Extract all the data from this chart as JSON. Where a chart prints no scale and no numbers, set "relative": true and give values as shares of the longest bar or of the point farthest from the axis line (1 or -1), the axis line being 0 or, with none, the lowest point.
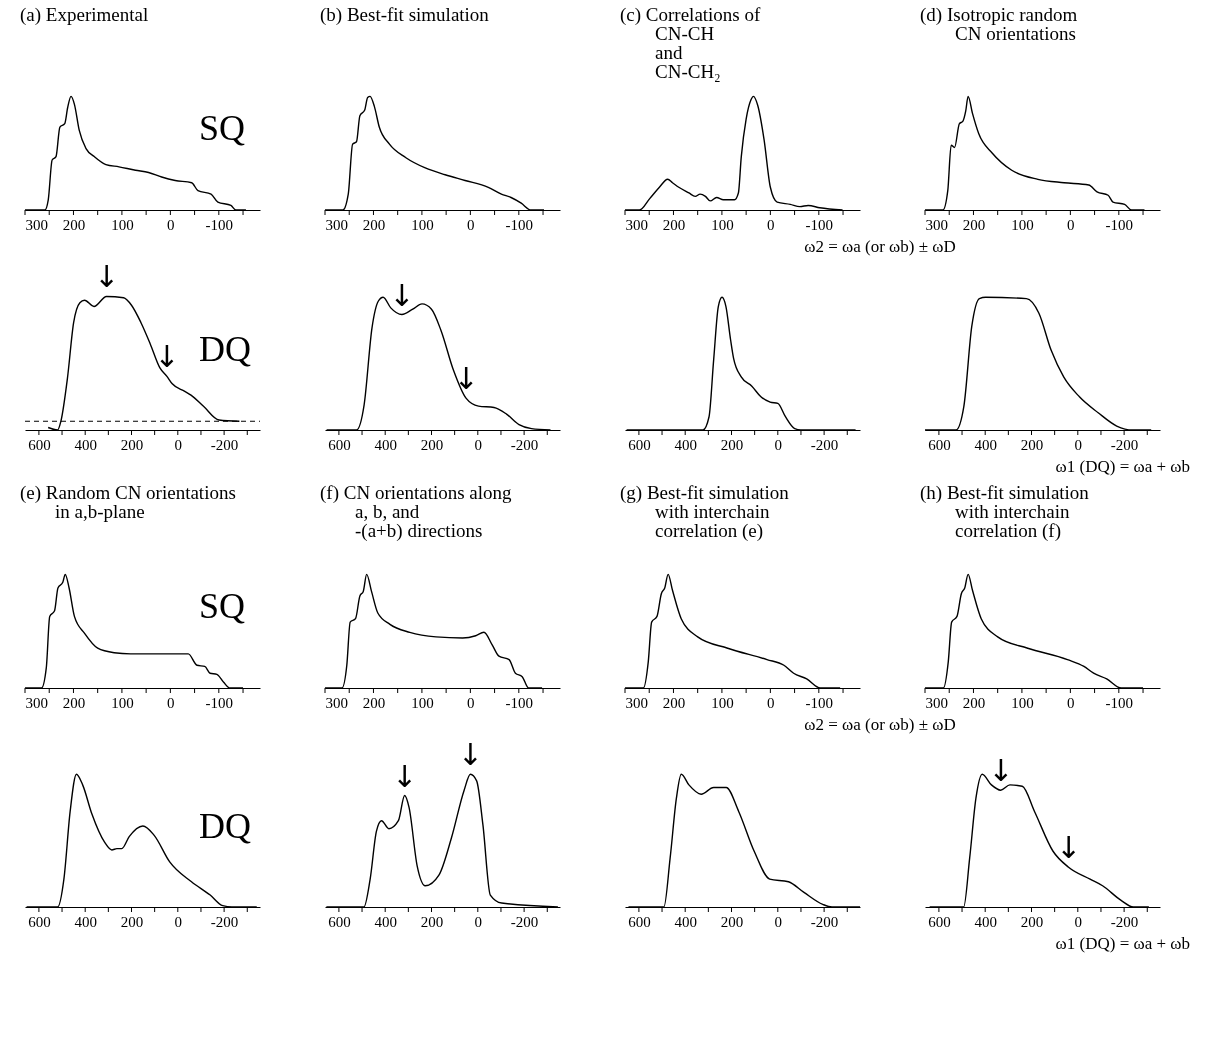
{
  "chart_data": [
    {
      "type": "line",
      "relative": true,
      "title": "(a) Experimental",
      "annotations": [
        "SQ"
      ],
      "xlim": [
        300,
        -185
      ],
      "xticks": [
        300,
        {
          "value": 250,
          "label": null
        },
        200,
        {
          "value": 150,
          "label": null
        },
        100,
        {
          "value": 50,
          "label": null
        },
        0,
        {
          "value": -50,
          "label": null
        },
        -100,
        {
          "value": -150,
          "label": null
        }
      ],
      "x": [
        300,
        259,
        252,
        244,
        236,
        228,
        218,
        212,
        205,
        198,
        188,
        174,
        157,
        133,
        106,
        72,
        45,
        18,
        -10,
        -44,
        -57,
        -84,
        -98,
        -125,
        -135,
        -156
      ],
      "values": [
        0,
        0,
        0.09,
        0.44,
        0.47,
        0.73,
        0.76,
        0.9,
        1.0,
        0.93,
        0.7,
        0.54,
        0.47,
        0.4,
        0.38,
        0.35,
        0.33,
        0.29,
        0.26,
        0.24,
        0.17,
        0.14,
        0.07,
        0.04,
        0,
        0
      ]
    },
    {
      "type": "line",
      "relative": true,
      "title": "(b) Best-fit simulation",
      "xlim": [
        300,
        -185
      ],
      "xticks": [
        300,
        {
          "value": 250,
          "label": null
        },
        200,
        {
          "value": 150,
          "label": null
        },
        100,
        {
          "value": 50,
          "label": null
        },
        0,
        {
          "value": -50,
          "label": null
        },
        -100,
        {
          "value": -150,
          "label": null
        }
      ],
      "x": [
        300,
        263,
        252,
        243,
        235,
        228,
        218,
        212,
        207,
        198,
        188,
        167,
        133,
        93,
        52,
        11,
        -37,
        -64,
        -84,
        -105,
        -125,
        -152
      ],
      "values": [
        0,
        0,
        0.14,
        0.58,
        0.6,
        0.83,
        0.88,
        0.99,
        1.0,
        0.91,
        0.73,
        0.58,
        0.46,
        0.37,
        0.31,
        0.26,
        0.2,
        0.14,
        0.11,
        0.06,
        0,
        0
      ]
    },
    {
      "type": "line",
      "relative": true,
      "title": "(c) Correlations of\nCN-CH\nand\nCN-CH₂",
      "xlabel": "ω2 = ωa (or ωb) ± ωD",
      "xlim": [
        300,
        -185
      ],
      "xticks": [
        300,
        {
          "value": 250,
          "label": null
        },
        200,
        {
          "value": 150,
          "label": null
        },
        100,
        {
          "value": 50,
          "label": null
        },
        0,
        {
          "value": -50,
          "label": null
        },
        -100,
        {
          "value": -150,
          "label": null
        }
      ],
      "x": [
        300,
        270,
        249,
        229,
        212,
        202,
        189,
        168,
        155,
        145,
        134,
        124,
        111,
        97,
        74,
        66,
        60,
        50,
        40,
        35,
        26,
        13,
        0,
        -14,
        -41,
        -61,
        -78,
        -102,
        -149
      ],
      "values": [
        0,
        0,
        0.1,
        0.2,
        0.27,
        0.24,
        0.2,
        0.15,
        0.12,
        0.14,
        0.12,
        0.08,
        0.11,
        0.09,
        0.09,
        0.15,
        0.47,
        0.8,
        0.97,
        1.0,
        0.92,
        0.62,
        0.2,
        0.07,
        0.05,
        0.03,
        0.04,
        0.02,
        0
      ]
    },
    {
      "type": "line",
      "relative": true,
      "title": "(d) Isotropic random\nCN orientations",
      "xlim": [
        300,
        -185
      ],
      "xticks": [
        300,
        {
          "value": 250,
          "label": null
        },
        200,
        {
          "value": 150,
          "label": null
        },
        100,
        {
          "value": 50,
          "label": null
        },
        0,
        {
          "value": -50,
          "label": null
        },
        -100,
        {
          "value": -150,
          "label": null
        }
      ],
      "x": [
        300,
        263,
        253,
        246,
        239,
        229,
        222,
        216,
        211,
        202,
        189,
        161,
        121,
        67,
        13,
        -38,
        -55,
        -78,
        -88,
        -112,
        -126,
        -153
      ],
      "values": [
        0,
        0,
        0.17,
        0.57,
        0.55,
        0.76,
        0.78,
        0.87,
        1.0,
        0.85,
        0.67,
        0.5,
        0.35,
        0.27,
        0.24,
        0.22,
        0.16,
        0.13,
        0.07,
        0.05,
        0,
        0
      ]
    },
    {
      "type": "line",
      "relative": true,
      "annotations": [
        "DQ",
        {
          "text": "↓",
          "x": 308,
          "y": 1.0
        },
        {
          "text": "↓",
          "x": 47,
          "y": 0.36
        }
      ],
      "ref_lines": [
        {
          "axis": "y",
          "value": 0,
          "line_style": "dashed"
        }
      ],
      "xlim": [
        660,
        -355
      ],
      "xticks": [
        600,
        {
          "value": 500,
          "label": null
        },
        400,
        {
          "value": 300,
          "label": null
        },
        200,
        {
          "value": 100,
          "label": null
        },
        0,
        {
          "value": -100,
          "label": null
        },
        -200,
        {
          "value": -300,
          "label": null
        }
      ],
      "x": [
        560,
        519,
        505,
        477,
        450,
        423,
        403,
        362,
        308,
        234,
        200,
        159,
        119,
        78,
        47,
        24,
        -30,
        -57,
        -111,
        -178,
        -266
      ],
      "values": [
        -0.05,
        -0.07,
        0,
        0.34,
        0.79,
        0.95,
        0.97,
        0.92,
        1.0,
        0.99,
        0.93,
        0.79,
        0.62,
        0.43,
        0.36,
        0.3,
        0.24,
        0.21,
        0.12,
        0.01,
        0
      ]
    },
    {
      "type": "line",
      "relative": true,
      "annotations": [
        {
          "text": "↓",
          "x": 328,
          "y": 0.87
        },
        {
          "text": "↓",
          "x": 51,
          "y": 0.24
        }
      ],
      "xlim": [
        660,
        -355
      ],
      "xticks": [
        600,
        {
          "value": 500,
          "label": null
        },
        400,
        {
          "value": 300,
          "label": null
        },
        200,
        {
          "value": 100,
          "label": null
        },
        0,
        {
          "value": -100,
          "label": null
        },
        -200,
        {
          "value": -300,
          "label": null
        }
      ],
      "x": [
        653,
        524,
        491,
        457,
        430,
        409,
        376,
        328,
        281,
        241,
        200,
        159,
        105,
        51,
        -3,
        -70,
        -124,
        -178,
        -232,
        -314
      ],
      "values": [
        0,
        0,
        0.19,
        0.77,
        0.97,
        1.0,
        0.92,
        0.87,
        0.91,
        0.95,
        0.91,
        0.75,
        0.45,
        0.24,
        0.18,
        0.17,
        0.12,
        0.04,
        0.01,
        0
      ]
    },
    {
      "type": "line",
      "relative": true,
      "xlim": [
        660,
        -355
      ],
      "xticks": [
        600,
        {
          "value": 500,
          "label": null
        },
        400,
        {
          "value": 300,
          "label": null
        },
        200,
        {
          "value": 100,
          "label": null
        },
        0,
        {
          "value": -100,
          "label": null
        },
        -200,
        {
          "value": -300,
          "label": null
        }
      ],
      "x": [
        653,
        323,
        297,
        277,
        257,
        241,
        224,
        204,
        191,
        158,
        112,
        73,
        33,
        0,
        -33,
        -73,
        -99,
        -336
      ],
      "values": [
        0,
        0,
        0.1,
        0.53,
        0.93,
        1.0,
        0.93,
        0.68,
        0.54,
        0.4,
        0.33,
        0.25,
        0.21,
        0.2,
        0.1,
        0.01,
        0,
        0
      ]
    },
    {
      "type": "line",
      "relative": true,
      "xlabel": "ω1 (DQ) = ωa + ωb",
      "xlim": [
        660,
        -355
      ],
      "xticks": [
        600,
        {
          "value": 500,
          "label": null
        },
        400,
        {
          "value": 300,
          "label": null
        },
        200,
        {
          "value": 100,
          "label": null
        },
        0,
        {
          "value": -100,
          "label": null
        },
        -200,
        {
          "value": -300,
          "label": null
        }
      ],
      "x": [
        660,
        526,
        492,
        458,
        425,
        398,
        222,
        168,
        115,
        61,
        -7,
        -88,
        -168,
        -236,
        -317
      ],
      "values": [
        0,
        0,
        0.18,
        0.78,
        0.99,
        1.0,
        0.99,
        0.88,
        0.6,
        0.4,
        0.25,
        0.13,
        0.03,
        0,
        0
      ]
    },
    {
      "type": "line",
      "relative": true,
      "title": "(e) Random CN orientations\nin a,b-plane",
      "annotations": [
        "SQ"
      ],
      "xlim": [
        300,
        -185
      ],
      "xticks": [
        300,
        {
          "value": 250,
          "label": null
        },
        200,
        {
          "value": 150,
          "label": null
        },
        100,
        {
          "value": 50,
          "label": null
        },
        0,
        {
          "value": -50,
          "label": null
        },
        -100,
        {
          "value": -150,
          "label": null
        }
      ],
      "x": [
        300,
        266,
        256,
        249,
        239,
        232,
        222,
        217,
        209,
        198,
        177,
        150,
        116,
        82,
        13,
        -37,
        -55,
        -71,
        -82,
        -96,
        -110,
        -123,
        -150
      ],
      "values": [
        0,
        0,
        0.18,
        0.63,
        0.68,
        0.88,
        0.93,
        1.0,
        0.88,
        0.63,
        0.48,
        0.35,
        0.31,
        0.3,
        0.3,
        0.3,
        0.2,
        0.19,
        0.13,
        0.12,
        0.05,
        0,
        0
      ]
    },
    {
      "type": "line",
      "relative": true,
      "title": "(f) CN orientations along\na, b, and\n-(a+b) directions",
      "xlim": [
        300,
        -185
      ],
      "xticks": [
        300,
        {
          "value": 250,
          "label": null
        },
        200,
        {
          "value": 150,
          "label": null
        },
        100,
        {
          "value": 50,
          "label": null
        },
        0,
        {
          "value": -50,
          "label": null
        },
        -100,
        {
          "value": -150,
          "label": null
        }
      ],
      "x": [
        300,
        265,
        255,
        248,
        237,
        228,
        221,
        214,
        204,
        191,
        166,
        125,
        71,
        16,
        -11,
        -28,
        -45,
        -59,
        -80,
        -93,
        -107,
        -120,
        -148
      ],
      "values": [
        0,
        0,
        0.2,
        0.58,
        0.61,
        0.81,
        0.85,
        1.0,
        0.85,
        0.66,
        0.56,
        0.49,
        0.45,
        0.44,
        0.46,
        0.49,
        0.38,
        0.28,
        0.25,
        0.13,
        0.1,
        0,
        0
      ]
    },
    {
      "type": "line",
      "relative": true,
      "title": "(g) Best-fit simulation\nwith interchain\ncorrelation (e)",
      "xlabel": "ω2 = ωa (or ωb) ± ωD",
      "xlim": [
        300,
        -185
      ],
      "xticks": [
        300,
        {
          "value": 250,
          "label": null
        },
        200,
        {
          "value": 150,
          "label": null
        },
        100,
        {
          "value": 50,
          "label": null
        },
        0,
        {
          "value": -50,
          "label": null
        },
        -100,
        {
          "value": -150,
          "label": null
        }
      ],
      "x": [
        300,
        262,
        252,
        245,
        234,
        225,
        218,
        211,
        202,
        184,
        150,
        88,
        7,
        -28,
        -48,
        -75,
        -103,
        -144
      ],
      "values": [
        0,
        0,
        0.23,
        0.58,
        0.63,
        0.83,
        0.88,
        1.0,
        0.86,
        0.61,
        0.45,
        0.35,
        0.25,
        0.2,
        0.13,
        0.08,
        0,
        0
      ]
    },
    {
      "type": "line",
      "relative": true,
      "title": "(h) Best-fit simulation\nwith interchain\ncorrelation (f)",
      "xlim": [
        300,
        -185
      ],
      "xticks": [
        300,
        {
          "value": 250,
          "label": null
        },
        200,
        {
          "value": 150,
          "label": null
        },
        100,
        {
          "value": 50,
          "label": null
        },
        0,
        {
          "value": -50,
          "label": null
        },
        -100,
        {
          "value": -150,
          "label": null
        }
      ],
      "x": [
        300,
        262,
        252,
        245,
        234,
        225,
        218,
        211,
        202,
        184,
        150,
        88,
        6,
        -28,
        -48,
        -75,
        -105,
        -150
      ],
      "values": [
        0,
        0,
        0.23,
        0.58,
        0.63,
        0.83,
        0.88,
        1.0,
        0.86,
        0.61,
        0.45,
        0.35,
        0.25,
        0.19,
        0.13,
        0.08,
        0,
        0
      ]
    },
    {
      "type": "line",
      "relative": true,
      "annotations": [
        "DQ"
      ],
      "xlim": [
        660,
        -355
      ],
      "xticks": [
        600,
        {
          "value": 500,
          "label": null
        },
        400,
        {
          "value": 300,
          "label": null
        },
        200,
        {
          "value": 100,
          "label": null
        },
        0,
        {
          "value": -100,
          "label": null
        },
        -200,
        {
          "value": -300,
          "label": null
        }
      ],
      "x": [
        653,
        519,
        492,
        465,
        438,
        411,
        371,
        317,
        285,
        263,
        242,
        210,
        151,
        102,
        35,
        -59,
        -140,
        -194,
        -234,
        -341
      ],
      "values": [
        0,
        0,
        0.21,
        0.72,
        1.0,
        0.92,
        0.7,
        0.49,
        0.43,
        0.44,
        0.44,
        0.53,
        0.61,
        0.54,
        0.34,
        0.19,
        0.09,
        0.01,
        0,
        0
      ]
    },
    {
      "type": "line",
      "relative": true,
      "annotations": [
        {
          "text": "↓",
          "x": 316,
          "y": 0.84
        },
        {
          "text": "↓",
          "x": 32,
          "y": 1.0
        }
      ],
      "xlim": [
        660,
        -355
      ],
      "xticks": [
        600,
        {
          "value": 500,
          "label": null
        },
        400,
        {
          "value": 300,
          "label": null
        },
        200,
        {
          "value": 100,
          "label": null
        },
        0,
        {
          "value": -100,
          "label": null
        },
        -200,
        {
          "value": -300,
          "label": null
        }
      ],
      "x": [
        654,
        492,
        465,
        438,
        416,
        384,
        343,
        316,
        297,
        262,
        227,
        168,
        114,
        59,
        32,
        5,
        -22,
        -54,
        -103,
        -346
      ],
      "values": [
        0,
        0,
        0.21,
        0.57,
        0.65,
        0.59,
        0.65,
        0.84,
        0.75,
        0.31,
        0.16,
        0.24,
        0.52,
        0.88,
        1.0,
        0.95,
        0.62,
        0.09,
        0.03,
        0
      ]
    },
    {
      "type": "line",
      "relative": true,
      "xlim": [
        660,
        -355
      ],
      "xticks": [
        600,
        {
          "value": 500,
          "label": null
        },
        400,
        {
          "value": 300,
          "label": null
        },
        200,
        {
          "value": 100,
          "label": null
        },
        0,
        {
          "value": -100,
          "label": null
        },
        -200,
        {
          "value": -300,
          "label": null
        }
      ],
      "x": [
        645,
        492,
        465,
        438,
        417,
        384,
        331,
        277,
        223,
        169,
        102,
        35,
        -46,
        -113,
        -194,
        -234,
        -355
      ],
      "values": [
        0,
        0,
        0.37,
        0.82,
        1.0,
        0.92,
        0.85,
        0.9,
        0.9,
        0.72,
        0.42,
        0.21,
        0.19,
        0.11,
        0.02,
        0,
        0
      ]
    },
    {
      "type": "line",
      "relative": true,
      "xlabel": "ω1 (DQ) = ωa + ωb",
      "annotations": [
        {
          "text": "↓",
          "x": 333,
          "y": 0.88
        },
        {
          "text": "↓",
          "x": 40,
          "y": 0.3
        }
      ],
      "xlim": [
        660,
        -355
      ],
      "xticks": [
        600,
        {
          "value": 500,
          "label": null
        },
        400,
        {
          "value": 300,
          "label": null
        },
        200,
        {
          "value": 100,
          "label": null
        },
        0,
        {
          "value": -100,
          "label": null
        },
        -200,
        {
          "value": -300,
          "label": null
        }
      ],
      "x": [
        640,
        493,
        467,
        440,
        413,
        373,
        333,
        293,
        240,
        187,
        107,
        40,
        -53,
        -107,
        -187,
        -240,
        -307
      ],
      "values": [
        0,
        0,
        0.37,
        0.82,
        1.0,
        0.92,
        0.88,
        0.92,
        0.91,
        0.72,
        0.42,
        0.3,
        0.21,
        0.16,
        0.05,
        0,
        0
      ]
    }
  ]
}
